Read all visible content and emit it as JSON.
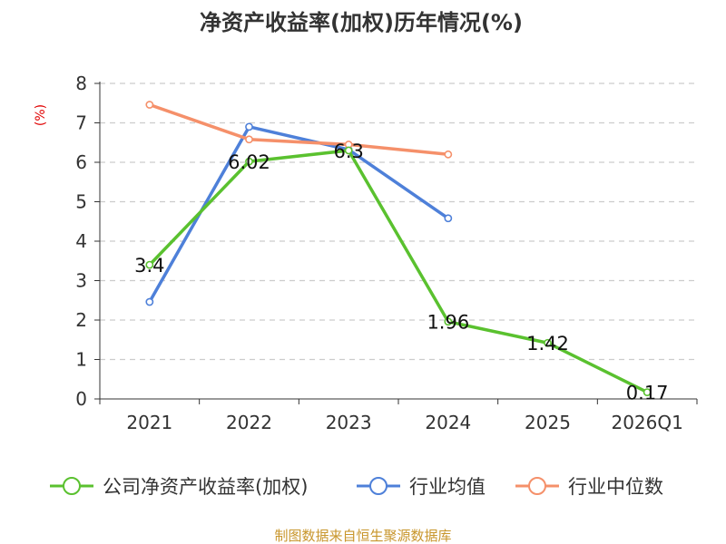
{
  "chart_data": {
    "type": "line",
    "title": "净资产收益率(加权)历年情况(%)",
    "ylabel": "(%)",
    "xlabel": "",
    "categories": [
      "2021",
      "2022",
      "2023",
      "2024",
      "2025",
      "2026Q1"
    ],
    "ylim": [
      0,
      8
    ],
    "yticks": [
      "0",
      "1",
      "2",
      "3",
      "4",
      "5",
      "6",
      "7",
      "8"
    ],
    "grid": true,
    "legend_position": "bottom",
    "series": [
      {
        "name": "公司净资产收益率(加权)",
        "color": "#5ac12f",
        "values": [
          3.4,
          6.02,
          6.3,
          1.96,
          1.42,
          0.17
        ],
        "labels": [
          "3.4",
          "6.02",
          "6.3",
          "1.96",
          "1.42",
          "0.17"
        ]
      },
      {
        "name": "行业均值",
        "color": "#4e80d9",
        "values": [
          2.46,
          6.9,
          6.32,
          4.58,
          null,
          null
        ]
      },
      {
        "name": "行业中位数",
        "color": "#f5906a",
        "values": [
          7.46,
          6.58,
          6.45,
          6.2,
          null,
          null
        ]
      }
    ],
    "source": "制图数据来自恒生聚源数据库"
  }
}
